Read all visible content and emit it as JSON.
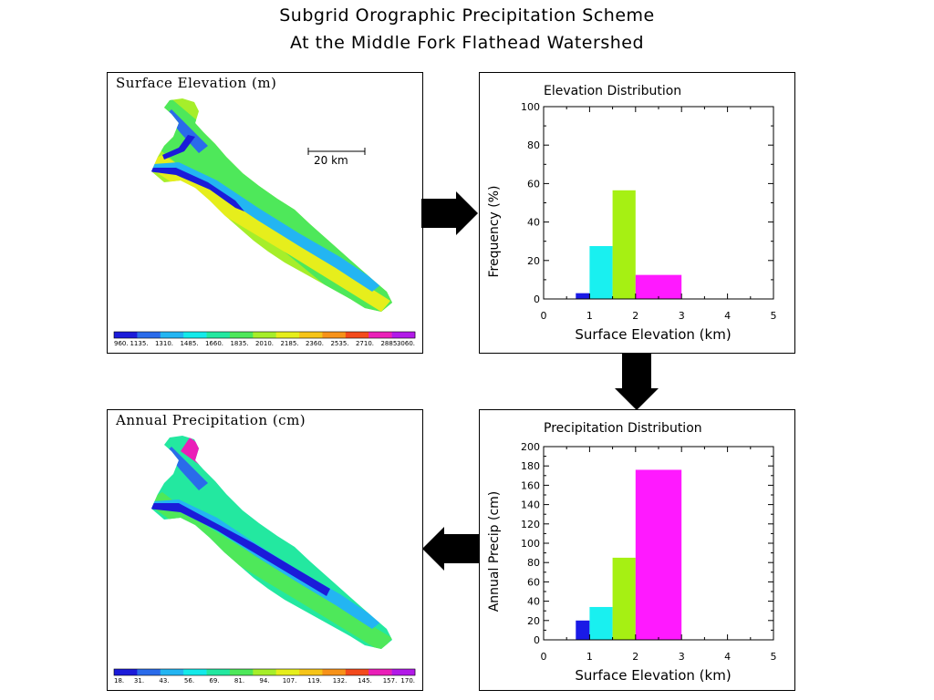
{
  "title": {
    "line1": "Subgrid Orographic Precipitation Scheme",
    "line2": "At the Middle Fork Flathead Watershed"
  },
  "colors": {
    "bin1": "#1a1ae6",
    "bin2": "#19f0f0",
    "bin3": "#a6f013",
    "bin4": "#ff19ff",
    "arrow": "#000000"
  },
  "map_elevation": {
    "title": "Surface Elevation (m)",
    "scale_label": "20 km",
    "colorbar": {
      "labels": [
        "960.",
        "1135.",
        "1310.",
        "1485.",
        "1660.",
        "1835.",
        "2010.",
        "2185.",
        "2360.",
        "2535.",
        "2710.",
        "2885.",
        "3060."
      ],
      "colors": [
        "#1b1bd9",
        "#2a6bea",
        "#23b5f2",
        "#14eaea",
        "#23e8a0",
        "#4ee85a",
        "#a6ee2a",
        "#e6ee1c",
        "#f6c418",
        "#f79219",
        "#f34a1c",
        "#ea1fb8",
        "#b21ae8"
      ]
    }
  },
  "map_precipitation": {
    "title": "Annual Precipitation (cm)",
    "colorbar": {
      "labels": [
        "18.",
        "31.",
        "43.",
        "56.",
        "69.",
        "81.",
        "94.",
        "107.",
        "119.",
        "132.",
        "145.",
        "157.",
        "170."
      ],
      "colors": [
        "#1b1bd9",
        "#2a6bea",
        "#23b5f2",
        "#14eaea",
        "#23e8a0",
        "#4ee85a",
        "#a6ee2a",
        "#e6ee1c",
        "#f6c418",
        "#f79219",
        "#f34a1c",
        "#ea1fb8",
        "#b21ae8"
      ]
    }
  },
  "chart_data": [
    {
      "type": "bar",
      "title": "Elevation Distribution",
      "xlabel": "Surface Elevation (km)",
      "ylabel": "Frequency (%)",
      "xlim": [
        0,
        5
      ],
      "ylim": [
        0,
        100
      ],
      "xticks": [
        0,
        1,
        2,
        3,
        4,
        5
      ],
      "yticks": [
        0,
        20,
        40,
        60,
        80,
        100
      ],
      "bars": [
        {
          "x0": 0.7,
          "x1": 1.0,
          "value": 3,
          "color": "#1a1ae6"
        },
        {
          "x0": 1.0,
          "x1": 1.5,
          "value": 27.5,
          "color": "#19f0f0"
        },
        {
          "x0": 1.5,
          "x1": 2.0,
          "value": 56.5,
          "color": "#a6f013"
        },
        {
          "x0": 2.0,
          "x1": 3.0,
          "value": 12.5,
          "color": "#ff19ff"
        }
      ]
    },
    {
      "type": "bar",
      "title": "Precipitation Distribution",
      "xlabel": "Surface Elevation (km)",
      "ylabel": "Annual Precip (cm)",
      "xlim": [
        0,
        5
      ],
      "ylim": [
        0,
        200
      ],
      "xticks": [
        0,
        1,
        2,
        3,
        4,
        5
      ],
      "yticks": [
        0,
        20,
        40,
        60,
        80,
        100,
        120,
        140,
        160,
        180,
        200
      ],
      "bars": [
        {
          "x0": 0.7,
          "x1": 1.0,
          "value": 20,
          "color": "#1a1ae6"
        },
        {
          "x0": 1.0,
          "x1": 1.5,
          "value": 34,
          "color": "#19f0f0"
        },
        {
          "x0": 1.5,
          "x1": 2.0,
          "value": 85,
          "color": "#a6f013"
        },
        {
          "x0": 2.0,
          "x1": 3.0,
          "value": 176,
          "color": "#ff19ff"
        }
      ]
    }
  ]
}
